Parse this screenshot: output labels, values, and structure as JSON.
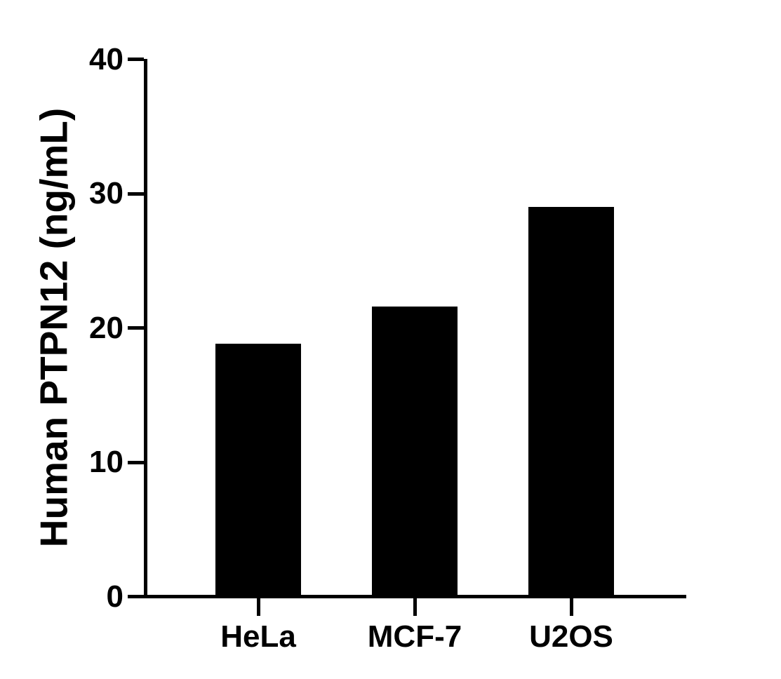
{
  "figure": {
    "background": "#ffffff"
  },
  "chart_data": {
    "type": "bar",
    "title": "",
    "xlabel": "",
    "ylabel": "Human PTPN12 (ng/mL)",
    "categories": [
      "HeLa",
      "MCF-7",
      "U2OS"
    ],
    "values": [
      18.8,
      21.6,
      29.0
    ],
    "ylim": [
      0,
      40
    ],
    "yticks": [
      0,
      10,
      20,
      30,
      40
    ],
    "bar_color": "#000000",
    "axis_color": "#000000",
    "text_color": "#000000",
    "grid": false,
    "legend": false
  }
}
